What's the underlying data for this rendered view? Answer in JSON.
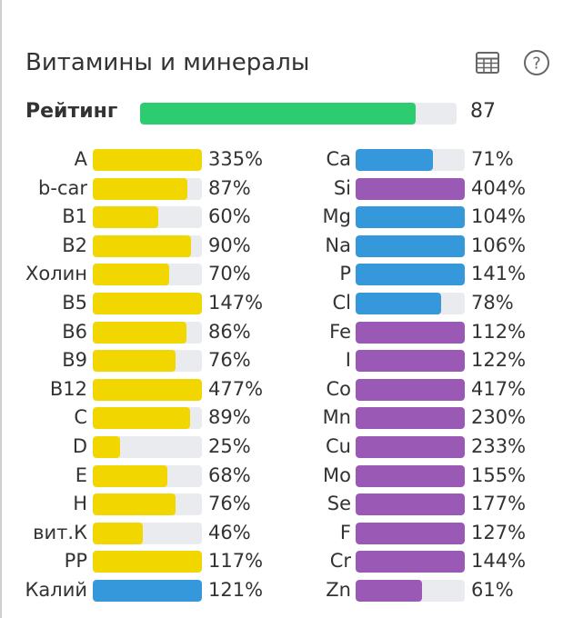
{
  "header": {
    "title": "Витамины и минералы",
    "table_icon": "table-icon",
    "help_icon": "question-circle-icon"
  },
  "rating": {
    "label": "Рейтинг",
    "value": "87",
    "fraction": 0.87,
    "color": "#2ecc71"
  },
  "colors": {
    "vitamin": "#f2d600",
    "mineral_blue": "#3498db",
    "mineral_purple": "#9b59b6",
    "track": "#e9ebee"
  },
  "left": [
    {
      "name": "A",
      "pct": "335%",
      "fill": 1.0,
      "color": "#f2d600"
    },
    {
      "name": "b-car",
      "pct": "87%",
      "fill": 0.87,
      "color": "#f2d600"
    },
    {
      "name": "B1",
      "pct": "60%",
      "fill": 0.6,
      "color": "#f2d600"
    },
    {
      "name": "B2",
      "pct": "90%",
      "fill": 0.9,
      "color": "#f2d600"
    },
    {
      "name": "Холин",
      "pct": "70%",
      "fill": 0.7,
      "color": "#f2d600"
    },
    {
      "name": "B5",
      "pct": "147%",
      "fill": 1.0,
      "color": "#f2d600"
    },
    {
      "name": "B6",
      "pct": "86%",
      "fill": 0.86,
      "color": "#f2d600"
    },
    {
      "name": "B9",
      "pct": "76%",
      "fill": 0.76,
      "color": "#f2d600"
    },
    {
      "name": "B12",
      "pct": "477%",
      "fill": 1.0,
      "color": "#f2d600"
    },
    {
      "name": "C",
      "pct": "89%",
      "fill": 0.89,
      "color": "#f2d600"
    },
    {
      "name": "D",
      "pct": "25%",
      "fill": 0.25,
      "color": "#f2d600"
    },
    {
      "name": "E",
      "pct": "68%",
      "fill": 0.68,
      "color": "#f2d600"
    },
    {
      "name": "H",
      "pct": "76%",
      "fill": 0.76,
      "color": "#f2d600"
    },
    {
      "name": "вит.К",
      "pct": "46%",
      "fill": 0.46,
      "color": "#f2d600"
    },
    {
      "name": "PP",
      "pct": "117%",
      "fill": 1.0,
      "color": "#f2d600"
    },
    {
      "name": "Калий",
      "pct": "121%",
      "fill": 1.0,
      "color": "#3498db"
    }
  ],
  "right": [
    {
      "name": "Ca",
      "pct": "71%",
      "fill": 0.71,
      "color": "#3498db"
    },
    {
      "name": "Si",
      "pct": "404%",
      "fill": 1.0,
      "color": "#9b59b6"
    },
    {
      "name": "Mg",
      "pct": "104%",
      "fill": 1.0,
      "color": "#3498db"
    },
    {
      "name": "Na",
      "pct": "106%",
      "fill": 1.0,
      "color": "#3498db"
    },
    {
      "name": "P",
      "pct": "141%",
      "fill": 1.0,
      "color": "#3498db"
    },
    {
      "name": "Cl",
      "pct": "78%",
      "fill": 0.78,
      "color": "#3498db"
    },
    {
      "name": "Fe",
      "pct": "112%",
      "fill": 1.0,
      "color": "#9b59b6"
    },
    {
      "name": "I",
      "pct": "122%",
      "fill": 1.0,
      "color": "#9b59b6"
    },
    {
      "name": "Co",
      "pct": "417%",
      "fill": 1.0,
      "color": "#9b59b6"
    },
    {
      "name": "Mn",
      "pct": "230%",
      "fill": 1.0,
      "color": "#9b59b6"
    },
    {
      "name": "Cu",
      "pct": "233%",
      "fill": 1.0,
      "color": "#9b59b6"
    },
    {
      "name": "Mo",
      "pct": "155%",
      "fill": 1.0,
      "color": "#9b59b6"
    },
    {
      "name": "Se",
      "pct": "177%",
      "fill": 1.0,
      "color": "#9b59b6"
    },
    {
      "name": "F",
      "pct": "127%",
      "fill": 1.0,
      "color": "#9b59b6"
    },
    {
      "name": "Cr",
      "pct": "144%",
      "fill": 1.0,
      "color": "#9b59b6"
    },
    {
      "name": "Zn",
      "pct": "61%",
      "fill": 0.61,
      "color": "#9b59b6"
    }
  ]
}
